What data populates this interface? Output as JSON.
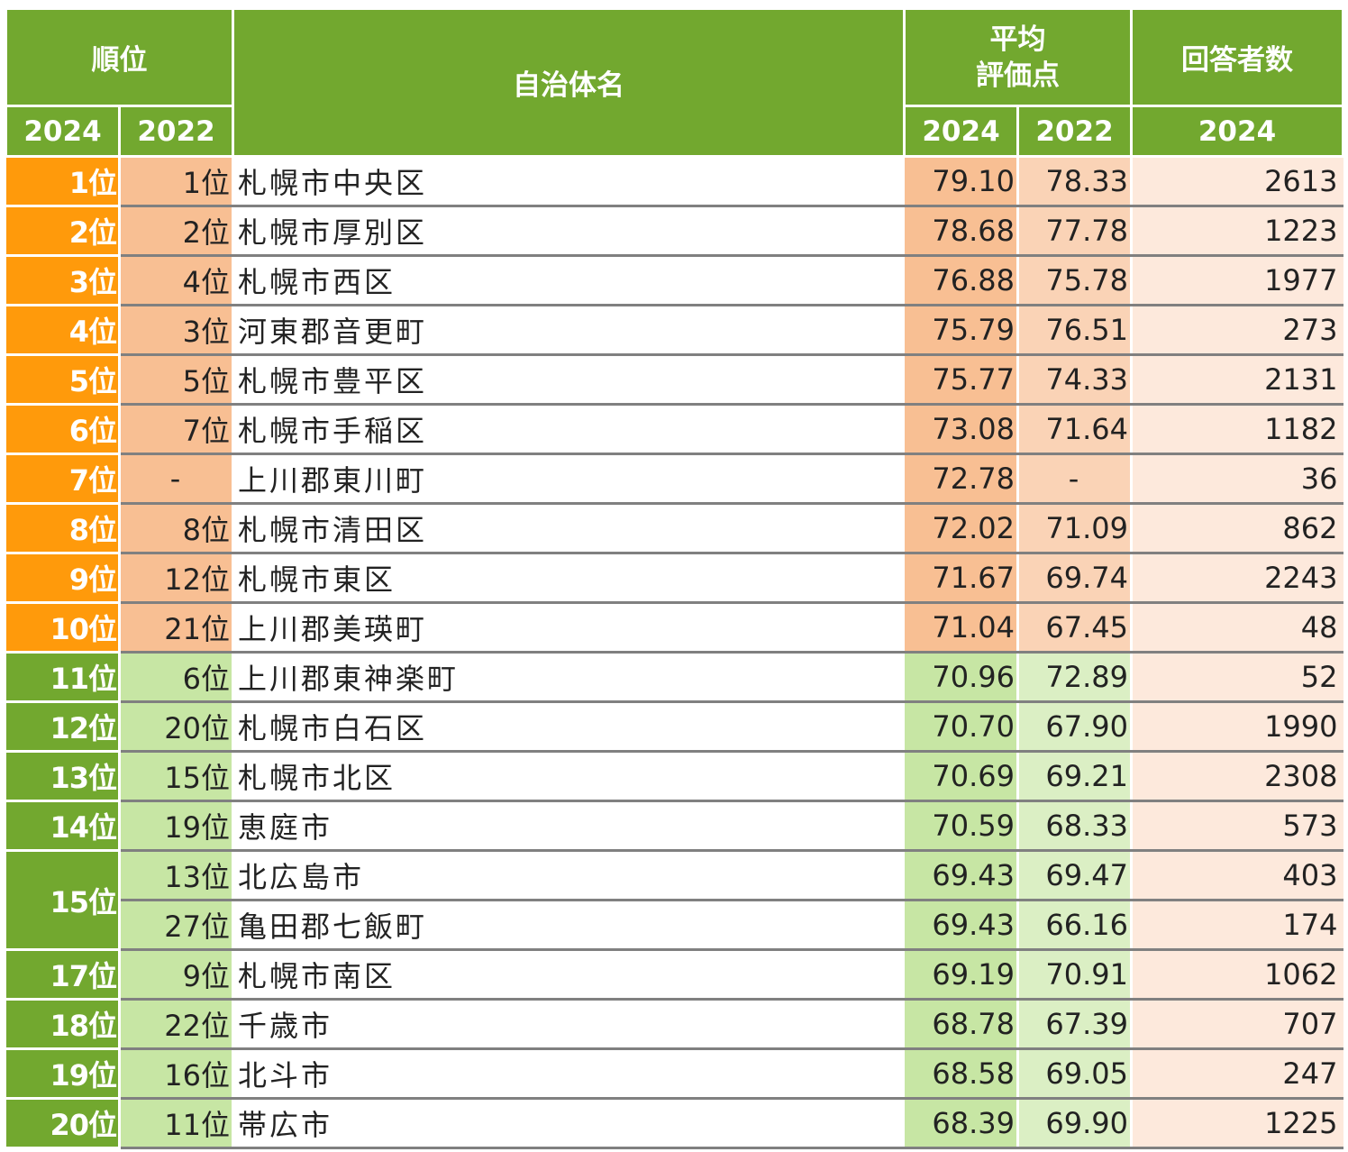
{
  "header": {
    "rank": "順位",
    "name": "自治体名",
    "score_line1": "平均",
    "score_line2": "評価点",
    "respondents": "回答者数",
    "y2024": "2024",
    "y2022": "2022"
  },
  "colors": {
    "header_green": "#72a82f",
    "top10_rank": "#ff9a0b",
    "top10_cell": "#f8bf93",
    "top10_cell_light": "#fad3b6",
    "green_cell": "#c7e6a4",
    "green_cell_light": "#dbefc4",
    "count_cell": "#fde9dc"
  },
  "rows": [
    {
      "rank": "1位",
      "prev": "1位",
      "name": "札幌市中央区",
      "s2024": "79.10",
      "s2022": "78.33",
      "count": "2613"
    },
    {
      "rank": "2位",
      "prev": "2位",
      "name": "札幌市厚別区",
      "s2024": "78.68",
      "s2022": "77.78",
      "count": "1223"
    },
    {
      "rank": "3位",
      "prev": "4位",
      "name": "札幌市西区",
      "s2024": "76.88",
      "s2022": "75.78",
      "count": "1977"
    },
    {
      "rank": "4位",
      "prev": "3位",
      "name": "河東郡音更町",
      "s2024": "75.79",
      "s2022": "76.51",
      "count": "273"
    },
    {
      "rank": "5位",
      "prev": "5位",
      "name": "札幌市豊平区",
      "s2024": "75.77",
      "s2022": "74.33",
      "count": "2131"
    },
    {
      "rank": "6位",
      "prev": "7位",
      "name": "札幌市手稲区",
      "s2024": "73.08",
      "s2022": "71.64",
      "count": "1182"
    },
    {
      "rank": "7位",
      "prev": "-",
      "name": "上川郡東川町",
      "s2024": "72.78",
      "s2022": "-",
      "count": "36"
    },
    {
      "rank": "8位",
      "prev": "8位",
      "name": "札幌市清田区",
      "s2024": "72.02",
      "s2022": "71.09",
      "count": "862"
    },
    {
      "rank": "9位",
      "prev": "12位",
      "name": "札幌市東区",
      "s2024": "71.67",
      "s2022": "69.74",
      "count": "2243"
    },
    {
      "rank": "10位",
      "prev": "21位",
      "name": "上川郡美瑛町",
      "s2024": "71.04",
      "s2022": "67.45",
      "count": "48"
    },
    {
      "rank": "11位",
      "prev": "6位",
      "name": "上川郡東神楽町",
      "s2024": "70.96",
      "s2022": "72.89",
      "count": "52"
    },
    {
      "rank": "12位",
      "prev": "20位",
      "name": "札幌市白石区",
      "s2024": "70.70",
      "s2022": "67.90",
      "count": "1990"
    },
    {
      "rank": "13位",
      "prev": "15位",
      "name": "札幌市北区",
      "s2024": "70.69",
      "s2022": "69.21",
      "count": "2308"
    },
    {
      "rank": "14位",
      "prev": "19位",
      "name": "恵庭市",
      "s2024": "70.59",
      "s2022": "68.33",
      "count": "573"
    },
    {
      "rank": "15位",
      "prev": "13位",
      "name": "北広島市",
      "s2024": "69.43",
      "s2022": "69.47",
      "count": "403"
    },
    {
      "rank": "",
      "prev": "27位",
      "name": "亀田郡七飯町",
      "s2024": "69.43",
      "s2022": "66.16",
      "count": "174"
    },
    {
      "rank": "17位",
      "prev": "9位",
      "name": "札幌市南区",
      "s2024": "69.19",
      "s2022": "70.91",
      "count": "1062"
    },
    {
      "rank": "18位",
      "prev": "22位",
      "name": "千歳市",
      "s2024": "68.78",
      "s2022": "67.39",
      "count": "707"
    },
    {
      "rank": "19位",
      "prev": "16位",
      "name": "北斗市",
      "s2024": "68.58",
      "s2022": "69.05",
      "count": "247"
    },
    {
      "rank": "20位",
      "prev": "11位",
      "name": "帯広市",
      "s2024": "68.39",
      "s2022": "69.90",
      "count": "1225"
    }
  ]
}
